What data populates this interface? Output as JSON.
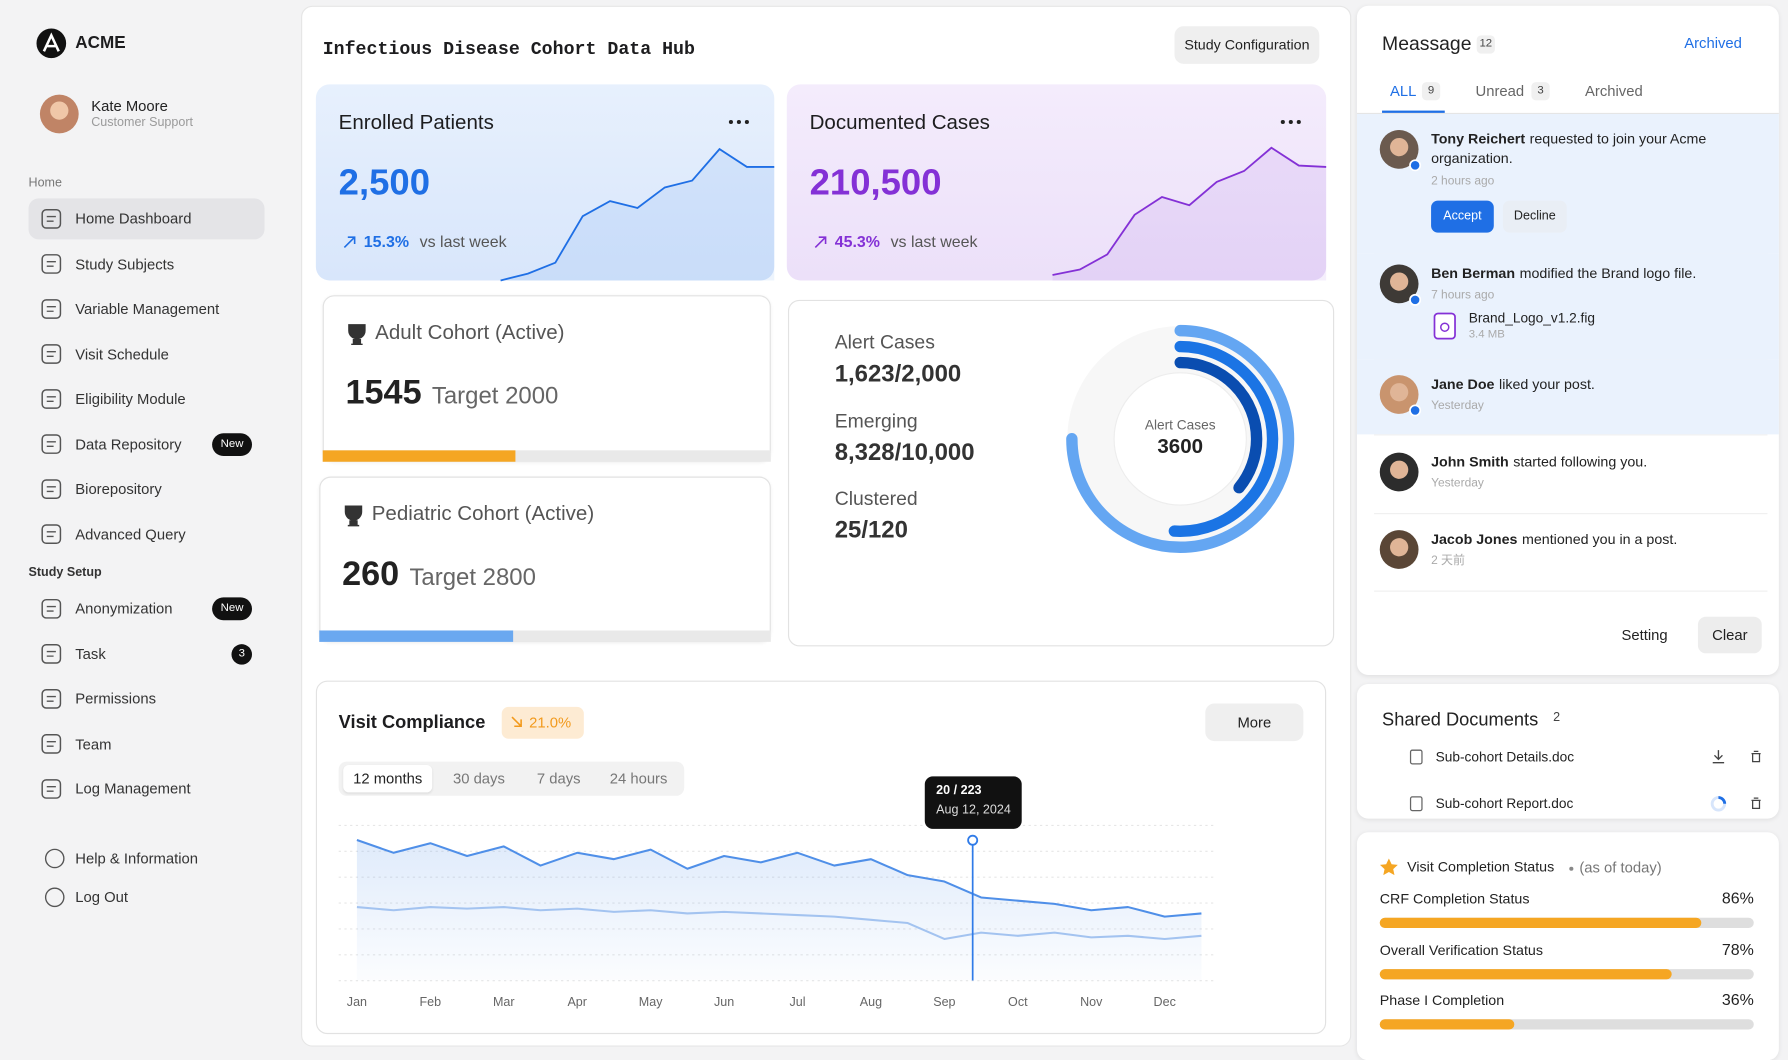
{
  "sidebar": {
    "brand": "ACME",
    "user": {
      "name": "Kate Moore",
      "role": "Customer Support"
    },
    "sections": [
      {
        "title": "Home",
        "items": [
          {
            "label": "Home Dashboard",
            "active": true
          },
          {
            "label": "Study Subjects"
          },
          {
            "label": "Variable Management"
          },
          {
            "label": "Visit Schedule"
          },
          {
            "label": "Eligibility Module"
          },
          {
            "label": "Data Repository",
            "badge": "New"
          },
          {
            "label": "Biorepository"
          },
          {
            "label": "Advanced Query"
          }
        ]
      },
      {
        "title": "Study Setup",
        "items": [
          {
            "label": "Anonymization",
            "badge": "New"
          },
          {
            "label": "Task",
            "badge": 3
          },
          {
            "label": "Permissions"
          },
          {
            "label": "Team"
          },
          {
            "label": "Log Management"
          }
        ]
      }
    ],
    "footer": [
      {
        "label": "Help & Information"
      },
      {
        "label": "Log Out"
      }
    ]
  },
  "header": {
    "title": "Infectious Disease Cohort Data Hub",
    "button": "Study Configuration"
  },
  "kpis": [
    {
      "title": "Enrolled Patients",
      "value": "2,500",
      "change": "15.3%",
      "change_note": "vs last week",
      "color": "#1f6fe5",
      "trend": [
        0,
        5,
        13,
        47,
        58,
        53,
        68,
        73,
        96,
        83,
        83
      ]
    },
    {
      "title": "Documented Cases",
      "value": "210,500",
      "change": "45.3%",
      "change_note": "vs last week",
      "color": "#8431d6",
      "trend": [
        4,
        8,
        19,
        48,
        61,
        55,
        72,
        80,
        97,
        84,
        83
      ]
    }
  ],
  "cohorts": [
    {
      "title": "Adult Cohort (Active)",
      "count": 1545,
      "target": "Target 2000",
      "progress": 43,
      "color": "#f5a623"
    },
    {
      "title": "Pediatric Cohort (Active)",
      "count": 260,
      "target": "Target 2800",
      "progress": 43,
      "color": "#6aa8f0"
    }
  ],
  "alerts": {
    "items": [
      {
        "label": "Alert Cases",
        "value": "1,623/2,000"
      },
      {
        "label": "Emerging",
        "value": "8,328/10,000"
      },
      {
        "label": "Clustered",
        "value": "25/120"
      }
    ],
    "donut": {
      "label": "Alert Cases",
      "value": 3600,
      "rings": [
        {
          "value": 75,
          "color": "#64a6f2"
        },
        {
          "value": 51,
          "color": "#1b74e4"
        },
        {
          "value": 36,
          "color": "#0a4db0"
        }
      ]
    }
  },
  "compliance": {
    "title": "Visit Compliance",
    "change": "21.0%",
    "button": "More",
    "tabs": [
      "12 months",
      "30 days",
      "7 days",
      "24 hours"
    ],
    "tooltip": {
      "value": "20 / 223",
      "date": "Aug 12, 2024"
    },
    "chart": {
      "type": "line",
      "ylim": [
        0,
        100
      ],
      "categories": [
        "Jan",
        null,
        "Feb",
        null,
        "Mar",
        null,
        "Apr",
        null,
        "May",
        null,
        "Jun",
        null,
        "Jul",
        null,
        "Aug",
        null,
        "Sep",
        null,
        "Oct",
        null,
        "Nov",
        null,
        "Dec",
        null
      ],
      "series": [
        {
          "color": "#4f8fe8",
          "values": [
            88,
            80,
            86,
            78,
            84,
            72,
            80,
            76,
            82,
            70,
            78,
            74,
            80,
            72,
            76,
            66,
            62,
            52,
            50,
            48,
            44,
            46,
            40,
            42
          ]
        },
        {
          "color": "#a3c3f0",
          "values": [
            46,
            44,
            46,
            45,
            46,
            44,
            45,
            43,
            44,
            42,
            43,
            42,
            41,
            40,
            38,
            36,
            26,
            30,
            28,
            30,
            27,
            28,
            26,
            28
          ]
        }
      ]
    }
  },
  "messages": {
    "title": "Meassage",
    "count": 12,
    "link": "Archived",
    "tabs": [
      {
        "label": "ALL",
        "count": 9
      },
      {
        "label": "Unread",
        "count": 3
      },
      {
        "label": "Archived"
      }
    ],
    "items": [
      {
        "name": "Tony Reichert",
        "text": "requested to join your Acme organization.",
        "time": "2 hours ago",
        "unread": true,
        "actions": [
          "Accept",
          "Decline"
        ]
      },
      {
        "name": "Ben Berman",
        "text": "modified the Brand logo file.",
        "time": "7 hours ago",
        "unread": true,
        "file": {
          "name": "Brand_Logo_v1.2.fig",
          "size": "3.4 MB"
        }
      },
      {
        "name": "Jane Doe",
        "text": "liked your post.",
        "time": "Yesterday",
        "unread": true
      },
      {
        "name": "John Smith",
        "text": "started following you.",
        "time": "Yesterday"
      },
      {
        "name": "Jacob Jones",
        "text": "mentioned you in a post.",
        "time": "2 天前"
      }
    ],
    "buttons": [
      "Setting",
      "Clear"
    ]
  },
  "documents": {
    "title": "Shared Documents",
    "count": 2,
    "files": [
      "Sub-cohort Details.doc",
      "Sub-cohort Report.doc"
    ]
  },
  "completion": {
    "title": "Visit Completion Status",
    "note": "(as of today)",
    "items": [
      {
        "label": "CRF Completion Status",
        "value": 86,
        "value_label": "86%"
      },
      {
        "label": "Overall Verification Status",
        "value": 78,
        "value_label": "78%"
      },
      {
        "label": "Phase I Completion",
        "value": 36,
        "value_label": "36%"
      }
    ]
  }
}
